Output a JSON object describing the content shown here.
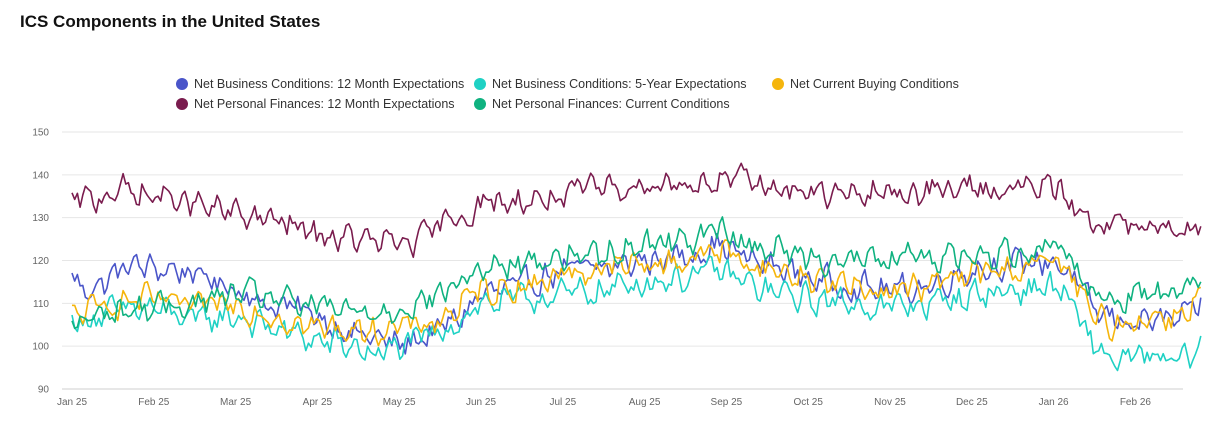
{
  "header": {
    "title": "ICS Components in the United States"
  },
  "chart_data": {
    "type": "line",
    "title": "ICS Components in the United States",
    "xlabel": "",
    "ylabel": "",
    "ylim": [
      90,
      150
    ],
    "y_ticks": [
      90,
      100,
      110,
      120,
      130,
      140,
      150
    ],
    "x_tick_labels": [
      "Jan 25",
      "Feb 25",
      "Mar 25",
      "Apr 25",
      "May 25",
      "Jun 25",
      "Jul 25",
      "Aug 25",
      "Sep 25",
      "Oct 25",
      "Nov 25",
      "Dec 25",
      "Jan 26",
      "Feb 26"
    ],
    "x_domain": [
      0,
      13.8
    ],
    "grid": "horizontal",
    "legend_position": "top",
    "series": [
      {
        "name": "Net Business Conditions: 12 Month Expectations",
        "color": "#4a55c9",
        "anchors": [
          [
            0,
            116
          ],
          [
            0.15,
            113
          ],
          [
            0.4,
            115
          ],
          [
            0.7,
            119
          ],
          [
            1.0,
            118
          ],
          [
            1.3,
            118
          ],
          [
            1.6,
            116
          ],
          [
            1.9,
            114
          ],
          [
            2.0,
            114
          ],
          [
            2.3,
            110
          ],
          [
            2.7,
            109
          ],
          [
            3.0,
            107
          ],
          [
            3.4,
            103
          ],
          [
            3.7,
            102
          ],
          [
            4.0,
            100
          ],
          [
            4.4,
            103
          ],
          [
            4.7,
            106
          ],
          [
            5.0,
            112
          ],
          [
            5.5,
            114
          ],
          [
            6.0,
            118
          ],
          [
            6.5,
            118
          ],
          [
            7.0,
            120
          ],
          [
            7.5,
            121
          ],
          [
            7.9,
            124
          ],
          [
            8.3,
            120
          ],
          [
            8.7,
            118
          ],
          [
            9.0,
            116
          ],
          [
            9.5,
            114
          ],
          [
            10.0,
            113
          ],
          [
            10.5,
            114
          ],
          [
            11.0,
            118
          ],
          [
            11.5,
            119
          ],
          [
            12.0,
            120
          ],
          [
            12.2,
            117
          ],
          [
            12.5,
            108
          ],
          [
            12.8,
            106
          ],
          [
            13.2,
            106
          ],
          [
            13.5,
            106
          ],
          [
            13.8,
            109
          ]
        ]
      },
      {
        "name": "Net Business Conditions: 5-Year Expectations",
        "color": "#1fd1c4",
        "anchors": [
          [
            0,
            105
          ],
          [
            0.5,
            108
          ],
          [
            1.0,
            109
          ],
          [
            1.5,
            106
          ],
          [
            2.0,
            107
          ],
          [
            2.3,
            105
          ],
          [
            2.7,
            103
          ],
          [
            3.0,
            101
          ],
          [
            3.4,
            100
          ],
          [
            3.8,
            98
          ],
          [
            4.0,
            100
          ],
          [
            4.5,
            103
          ],
          [
            5.0,
            110
          ],
          [
            5.5,
            111
          ],
          [
            6.0,
            112
          ],
          [
            6.5,
            113
          ],
          [
            7.0,
            115
          ],
          [
            7.5,
            116
          ],
          [
            7.9,
            118
          ],
          [
            8.3,
            114
          ],
          [
            8.7,
            112
          ],
          [
            9.0,
            111
          ],
          [
            9.5,
            110
          ],
          [
            10.0,
            109
          ],
          [
            10.5,
            110
          ],
          [
            11.0,
            112
          ],
          [
            11.5,
            113
          ],
          [
            12.0,
            114
          ],
          [
            12.2,
            111
          ],
          [
            12.4,
            102
          ],
          [
            12.7,
            97
          ],
          [
            13.2,
            97
          ],
          [
            13.5,
            96
          ],
          [
            13.8,
            100
          ]
        ]
      },
      {
        "name": "Net Current Buying Conditions",
        "color": "#f5b50c",
        "anchors": [
          [
            0,
            107
          ],
          [
            0.5,
            110
          ],
          [
            1.0,
            111
          ],
          [
            1.5,
            109
          ],
          [
            2.0,
            110
          ],
          [
            2.3,
            108
          ],
          [
            2.7,
            106
          ],
          [
            3.0,
            104
          ],
          [
            3.4,
            104
          ],
          [
            3.8,
            104
          ],
          [
            4.0,
            104
          ],
          [
            4.5,
            106
          ],
          [
            5.0,
            113
          ],
          [
            5.5,
            114
          ],
          [
            6.0,
            117
          ],
          [
            6.5,
            118
          ],
          [
            7.0,
            119
          ],
          [
            7.5,
            120
          ],
          [
            7.9,
            123
          ],
          [
            8.3,
            119
          ],
          [
            8.7,
            117
          ],
          [
            9.0,
            116
          ],
          [
            9.5,
            114
          ],
          [
            10.0,
            113
          ],
          [
            10.5,
            114
          ],
          [
            11.0,
            117
          ],
          [
            11.5,
            118
          ],
          [
            12.0,
            120
          ],
          [
            12.2,
            117
          ],
          [
            12.5,
            106
          ],
          [
            12.8,
            105
          ],
          [
            13.2,
            107
          ],
          [
            13.5,
            107
          ],
          [
            13.8,
            112
          ]
        ]
      },
      {
        "name": "Net Personal Finances: 12 Month Expectations",
        "color": "#7a1c4e",
        "anchors": [
          [
            0,
            134
          ],
          [
            0.3,
            134
          ],
          [
            0.5,
            137
          ],
          [
            0.7,
            136
          ],
          [
            1.0,
            135
          ],
          [
            1.3,
            134
          ],
          [
            1.5,
            133
          ],
          [
            1.9,
            131
          ],
          [
            2.0,
            131
          ],
          [
            2.3,
            130
          ],
          [
            2.7,
            128
          ],
          [
            3.0,
            126
          ],
          [
            3.4,
            125
          ],
          [
            3.8,
            124
          ],
          [
            4.0,
            124
          ],
          [
            4.3,
            125
          ],
          [
            4.5,
            128
          ],
          [
            5.0,
            133
          ],
          [
            5.5,
            134
          ],
          [
            6.0,
            135
          ],
          [
            6.5,
            137
          ],
          [
            7.0,
            138
          ],
          [
            7.5,
            138
          ],
          [
            8.0,
            139
          ],
          [
            8.3,
            138
          ],
          [
            8.7,
            137
          ],
          [
            9.0,
            136
          ],
          [
            9.5,
            135
          ],
          [
            10.0,
            136
          ],
          [
            10.5,
            136
          ],
          [
            11.0,
            137
          ],
          [
            11.5,
            137
          ],
          [
            12.0,
            137
          ],
          [
            12.2,
            134
          ],
          [
            12.4,
            130
          ],
          [
            12.8,
            128
          ],
          [
            13.2,
            127
          ],
          [
            13.5,
            127
          ],
          [
            13.8,
            129
          ]
        ]
      },
      {
        "name": "Net Personal Finances: Current Conditions",
        "color": "#0fb280",
        "anchors": [
          [
            0,
            105
          ],
          [
            0.5,
            108
          ],
          [
            1.0,
            109
          ],
          [
            1.5,
            110
          ],
          [
            2.0,
            112
          ],
          [
            2.3,
            112
          ],
          [
            2.7,
            110
          ],
          [
            3.0,
            109
          ],
          [
            3.4,
            108
          ],
          [
            3.8,
            108
          ],
          [
            4.0,
            109
          ],
          [
            4.5,
            112
          ],
          [
            5.0,
            118
          ],
          [
            5.5,
            119
          ],
          [
            6.0,
            121
          ],
          [
            6.5,
            122
          ],
          [
            7.0,
            124
          ],
          [
            7.5,
            125
          ],
          [
            7.9,
            127
          ],
          [
            8.3,
            124
          ],
          [
            8.7,
            122
          ],
          [
            9.0,
            121
          ],
          [
            9.5,
            120
          ],
          [
            10.0,
            120
          ],
          [
            10.5,
            121
          ],
          [
            11.0,
            121
          ],
          [
            11.5,
            122
          ],
          [
            12.0,
            124
          ],
          [
            12.2,
            121
          ],
          [
            12.5,
            112
          ],
          [
            12.8,
            111
          ],
          [
            13.2,
            113
          ],
          [
            13.5,
            114
          ],
          [
            13.8,
            116
          ]
        ]
      }
    ]
  }
}
